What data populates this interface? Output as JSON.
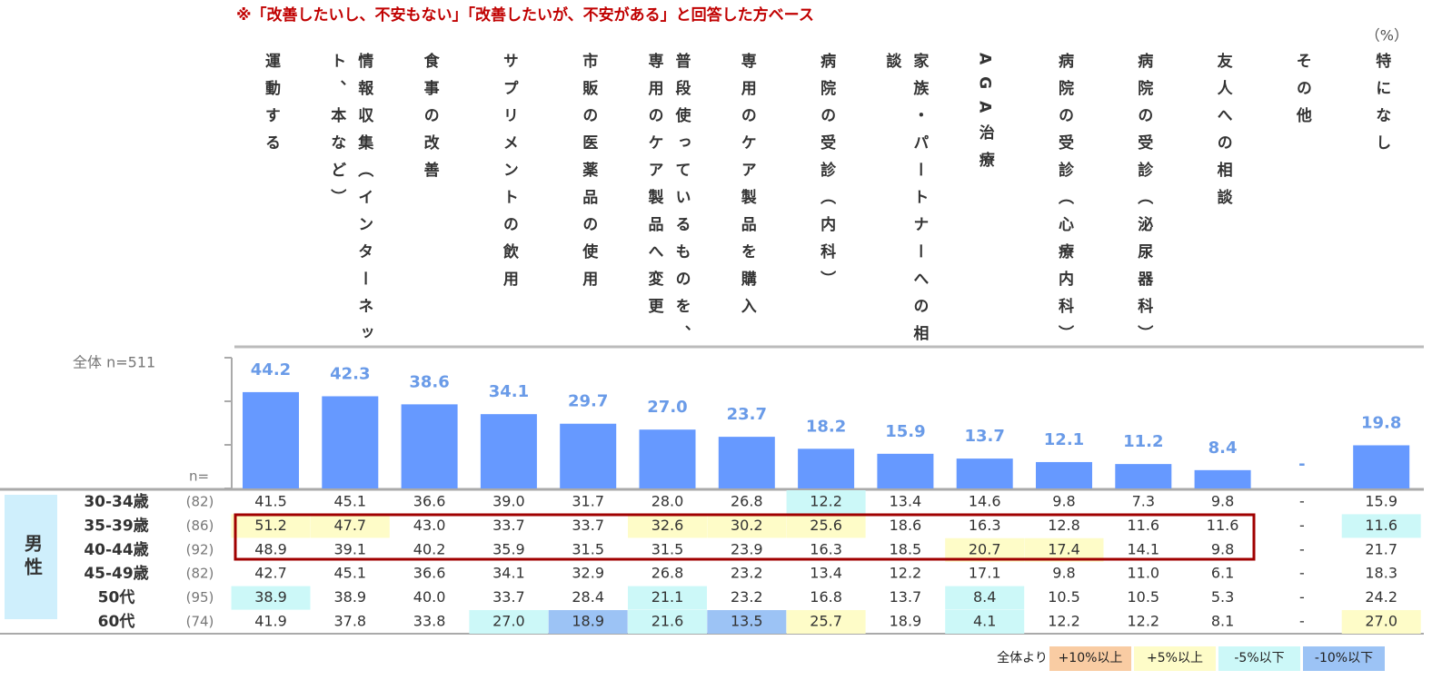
{
  "note": "※「改善したいし、不安もない」「改善したいが、不安がある」と回答した方ベース",
  "unit": "（%）",
  "chart_data": {
    "type": "bar",
    "categories": [
      "運動する",
      "情報収集（インターネット、本など）",
      "食事の改善",
      "サプリメントの飲用",
      "市販の医薬品の使用",
      "普段使っているものを、専用のケア製品へ変更",
      "専用のケア製品を購入",
      "病院の受診（内科）",
      "家族・パートナーへの相談",
      "AGA治療",
      "病院の受診（心療内科）",
      "病院の受診（泌尿器科）",
      "友人への相談",
      "その他",
      "特になし"
    ],
    "values": [
      44.2,
      42.3,
      38.6,
      34.1,
      29.7,
      27.0,
      23.7,
      18.2,
      15.9,
      13.7,
      12.1,
      11.2,
      8.4,
      null,
      19.8
    ],
    "value_labels": [
      "44.2",
      "42.3",
      "38.6",
      "34.1",
      "29.7",
      "27.0",
      "23.7",
      "18.2",
      "15.9",
      "13.7",
      "12.1",
      "11.2",
      "8.4",
      "-",
      "19.8"
    ],
    "color": "#6699ff",
    "ylim": [
      0,
      60
    ],
    "yticks": [
      0,
      20,
      40,
      60
    ],
    "base_label": "全体 n=511"
  },
  "table": {
    "n_header": "n=",
    "group": "男性",
    "rows": [
      {
        "label": "30-34歳",
        "n": "(82)",
        "cells": [
          "41.5",
          "45.1",
          "36.6",
          "39.0",
          "31.7",
          "28.0",
          "26.8",
          "12.2",
          "13.4",
          "14.6",
          "9.8",
          "7.3",
          "9.8",
          "-",
          "15.9"
        ],
        "cell_colors": [
          null,
          null,
          null,
          null,
          null,
          null,
          null,
          "#ccf8f8",
          null,
          null,
          null,
          null,
          null,
          null,
          null
        ]
      },
      {
        "label": "35-39歳",
        "n": "(86)",
        "cells": [
          "51.2",
          "47.7",
          "43.0",
          "33.7",
          "33.7",
          "32.6",
          "30.2",
          "25.6",
          "18.6",
          "16.3",
          "12.8",
          "11.6",
          "11.6",
          "-",
          "11.6"
        ],
        "cell_colors": [
          "#fefcc8",
          "#fefcc8",
          null,
          null,
          null,
          "#fefcc8",
          "#fefcc8",
          "#fefcc8",
          null,
          null,
          null,
          null,
          null,
          null,
          "#ccf8f8"
        ]
      },
      {
        "label": "40-44歳",
        "n": "(92)",
        "cells": [
          "48.9",
          "39.1",
          "40.2",
          "35.9",
          "31.5",
          "31.5",
          "23.9",
          "16.3",
          "18.5",
          "20.7",
          "17.4",
          "14.1",
          "9.8",
          "-",
          "21.7"
        ],
        "cell_colors": [
          null,
          null,
          null,
          null,
          null,
          null,
          null,
          null,
          null,
          "#fefcc8",
          "#fefcc8",
          null,
          null,
          null,
          null
        ]
      },
      {
        "label": "45-49歳",
        "n": "(82)",
        "cells": [
          "42.7",
          "45.1",
          "36.6",
          "34.1",
          "32.9",
          "26.8",
          "23.2",
          "13.4",
          "12.2",
          "17.1",
          "9.8",
          "11.0",
          "6.1",
          "-",
          "18.3"
        ],
        "cell_colors": [
          null,
          null,
          null,
          null,
          null,
          null,
          null,
          null,
          null,
          null,
          null,
          null,
          null,
          null,
          null
        ]
      },
      {
        "label": "50代",
        "n": "(95)",
        "cells": [
          "38.9",
          "38.9",
          "40.0",
          "33.7",
          "28.4",
          "21.1",
          "23.2",
          "16.8",
          "13.7",
          "8.4",
          "10.5",
          "10.5",
          "5.3",
          "-",
          "24.2"
        ],
        "cell_colors": [
          "#ccf8f8",
          null,
          null,
          null,
          null,
          "#ccf8f8",
          null,
          null,
          null,
          "#ccf8f8",
          null,
          null,
          null,
          null,
          null
        ]
      },
      {
        "label": "60代",
        "n": "(74)",
        "cells": [
          "41.9",
          "37.8",
          "33.8",
          "27.0",
          "18.9",
          "21.6",
          "13.5",
          "25.7",
          "18.9",
          "4.1",
          "12.2",
          "12.2",
          "8.1",
          "-",
          "27.0"
        ],
        "cell_colors": [
          null,
          null,
          null,
          "#ccf8f8",
          "#9cc3f5",
          "#ccf8f8",
          "#9cc3f5",
          "#fefcc8",
          null,
          "#ccf8f8",
          null,
          null,
          null,
          null,
          "#fefcc8"
        ]
      }
    ]
  },
  "legend": {
    "title": "全体より",
    "items": [
      {
        "label": "+10%以上",
        "color": "#f9cca3"
      },
      {
        "label": "+5%以上",
        "color": "#fefcc8"
      },
      {
        "label": "-5%以下",
        "color": "#ccf8f8"
      },
      {
        "label": "-10%以下",
        "color": "#9cc3f5"
      }
    ]
  }
}
